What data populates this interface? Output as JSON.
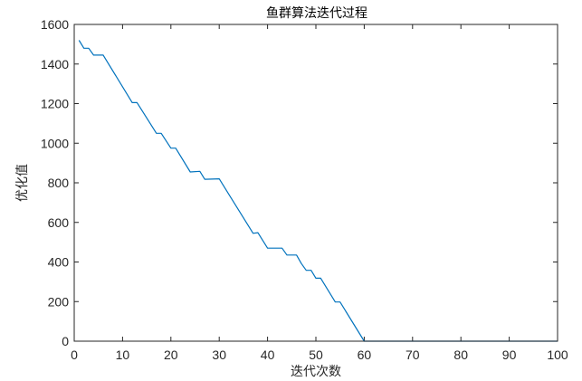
{
  "chart_data": {
    "type": "line",
    "title": "鱼群算法迭代过程",
    "xlabel": "迭代次数",
    "ylabel": "优化值",
    "xlim": [
      0,
      100
    ],
    "ylim": [
      0,
      1600
    ],
    "xticks": [
      0,
      10,
      20,
      30,
      40,
      50,
      60,
      70,
      80,
      90,
      100
    ],
    "yticks": [
      0,
      200,
      400,
      600,
      800,
      1000,
      1200,
      1400,
      1600
    ],
    "grid": false,
    "series": [
      {
        "color": "#0072bd",
        "x": [
          1,
          2,
          3,
          4,
          5,
          6,
          12,
          13,
          17,
          18,
          20,
          21,
          24,
          26,
          27,
          30,
          37,
          38,
          40,
          43,
          44,
          46,
          47,
          48,
          49,
          50,
          51,
          54,
          55,
          60,
          100
        ],
        "y": [
          1520,
          1480,
          1480,
          1445,
          1445,
          1445,
          1205,
          1205,
          1050,
          1050,
          975,
          975,
          855,
          858,
          818,
          820,
          545,
          548,
          470,
          470,
          435,
          435,
          392,
          358,
          358,
          318,
          318,
          198,
          198,
          0,
          0
        ]
      }
    ]
  }
}
